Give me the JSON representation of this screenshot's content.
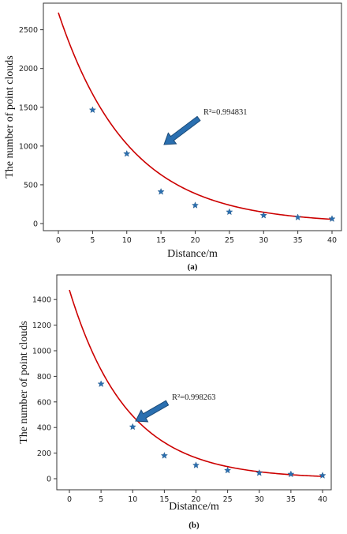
{
  "chart_data": [
    {
      "type": "scatter",
      "panel_label": "(a)",
      "xlabel": "Distance/m",
      "ylabel": "The number of point clouds",
      "xlim": [
        0,
        40
      ],
      "ylim": [
        0,
        2700
      ],
      "xticks": [
        0,
        5,
        10,
        15,
        20,
        25,
        30,
        35,
        40
      ],
      "yticks": [
        0,
        500,
        1000,
        1500,
        2000,
        2500
      ],
      "points": [
        [
          5,
          1465
        ],
        [
          10,
          900
        ],
        [
          15,
          410
        ],
        [
          20,
          235
        ],
        [
          25,
          150
        ],
        [
          30,
          105
        ],
        [
          35,
          80
        ],
        [
          40,
          60
        ]
      ],
      "fit": {
        "a": 2720,
        "b": 0.0975
      },
      "annotation": "R²=0.994831",
      "colors": {
        "fit": "#cc0000",
        "marker": "#2a6fb0",
        "arrow": "#2a6fb0"
      },
      "grid": false
    },
    {
      "type": "scatter",
      "panel_label": "(b)",
      "xlabel": "Distance/m",
      "ylabel": "The number of point clouds",
      "xlim": [
        0,
        40
      ],
      "ylim": [
        0,
        1500
      ],
      "xticks": [
        0,
        5,
        10,
        15,
        20,
        25,
        30,
        35,
        40
      ],
      "yticks": [
        0,
        200,
        400,
        600,
        800,
        1000,
        1200,
        1400
      ],
      "points": [
        [
          5,
          740
        ],
        [
          10,
          405
        ],
        [
          15,
          180
        ],
        [
          20,
          105
        ],
        [
          25,
          65
        ],
        [
          30,
          45
        ],
        [
          35,
          35
        ],
        [
          40,
          25
        ]
      ],
      "fit": {
        "a": 1475,
        "b": 0.11
      },
      "annotation": "R²=0.998263",
      "colors": {
        "fit": "#cc0000",
        "marker": "#2a6fb0",
        "arrow": "#2a6fb0"
      },
      "grid": false
    }
  ]
}
